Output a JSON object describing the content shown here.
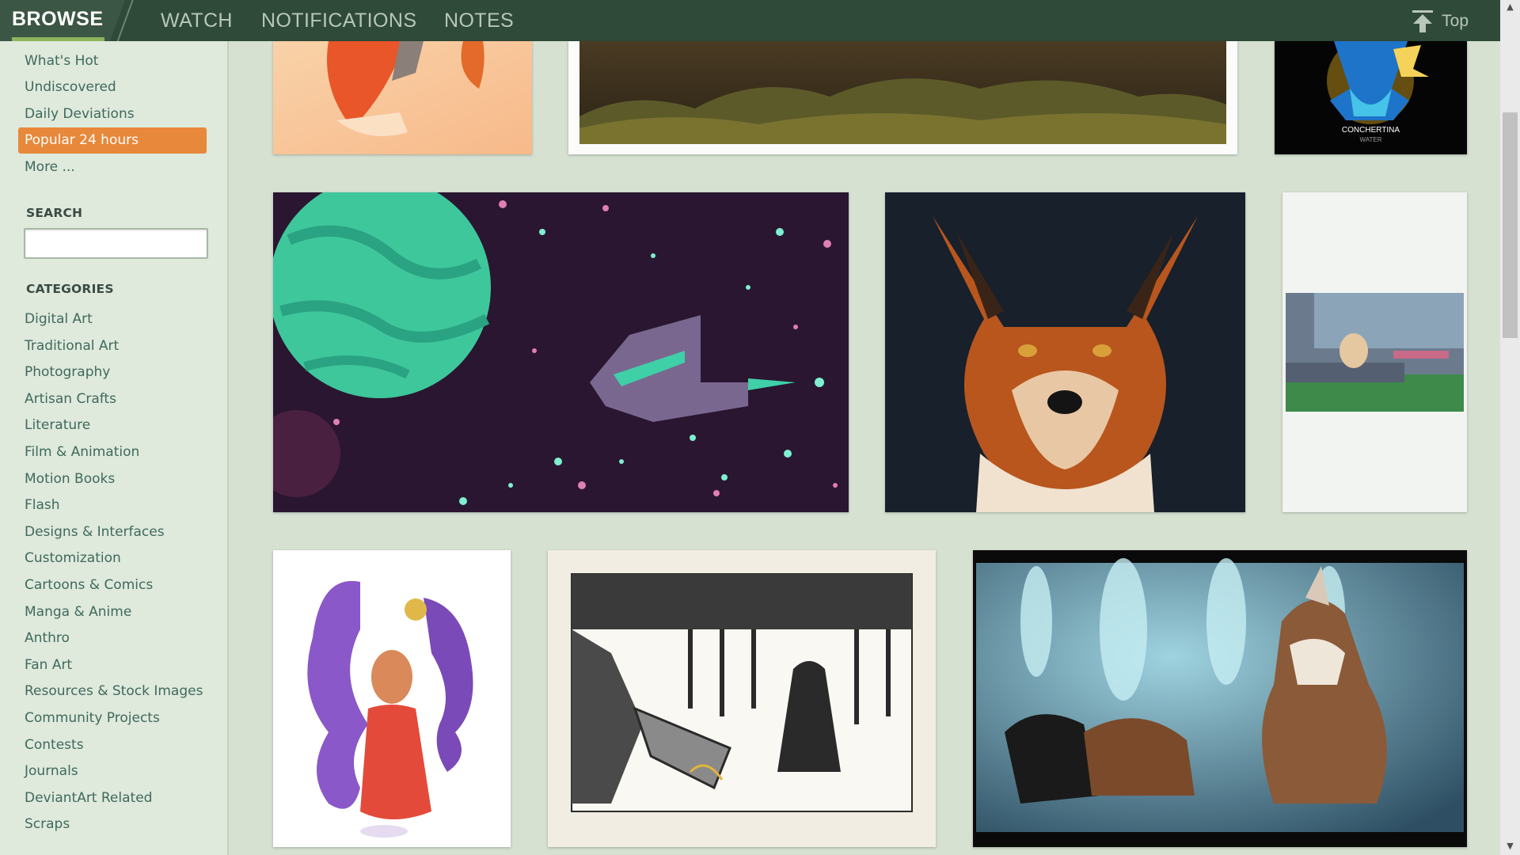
{
  "nav": {
    "browse": "BROWSE",
    "watch": "WATCH",
    "notifications": "NOTIFICATIONS",
    "notes": "NOTES",
    "top": "Top"
  },
  "sidebar": {
    "browse_links": [
      "What's Hot",
      "Undiscovered",
      "Daily Deviations",
      "Popular 24 hours",
      "More ..."
    ],
    "active_link": "Popular 24 hours",
    "search_heading": "SEARCH",
    "search_value": "",
    "categories_heading": "CATEGORIES",
    "categories": [
      "Digital Art",
      "Traditional Art",
      "Photography",
      "Artisan Crafts",
      "Literature",
      "Film & Animation",
      "Motion Books",
      "Flash",
      "Designs & Interfaces",
      "Customization",
      "Cartoons & Comics",
      "Manga & Anime",
      "Anthro",
      "Fan Art",
      "Resources & Stock Images",
      "Community Projects",
      "Contests",
      "Journals",
      "DeviantArt Related",
      "Scraps"
    ]
  },
  "gallery": {
    "thumb_texts": {
      "concertina_title": "CONCHERTINA",
      "concertina_sub": "WATER"
    }
  },
  "colors": {
    "topbar": "#2f4a39",
    "accent_underline": "#8fb35b",
    "active_item": "#e8883a",
    "link": "#3e6a5c",
    "page_bg": "#d6e1d2"
  },
  "icons": {
    "top": "arrow-up-to-line-icon"
  }
}
